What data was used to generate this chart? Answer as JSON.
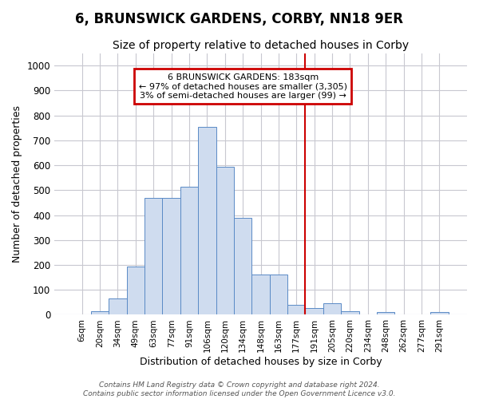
{
  "title": "6, BRUNSWICK GARDENS, CORBY, NN18 9ER",
  "subtitle": "Size of property relative to detached houses in Corby",
  "xlabel": "Distribution of detached houses by size in Corby",
  "ylabel": "Number of detached properties",
  "categories": [
    "6sqm",
    "20sqm",
    "34sqm",
    "49sqm",
    "63sqm",
    "77sqm",
    "91sqm",
    "106sqm",
    "120sqm",
    "134sqm",
    "148sqm",
    "163sqm",
    "177sqm",
    "191sqm",
    "205sqm",
    "220sqm",
    "234sqm",
    "248sqm",
    "262sqm",
    "277sqm",
    "291sqm"
  ],
  "values": [
    0,
    13,
    65,
    195,
    470,
    470,
    515,
    755,
    595,
    390,
    160,
    160,
    40,
    27,
    45,
    13,
    0,
    10,
    0,
    0,
    10
  ],
  "bar_color": "#cfdcef",
  "bar_edge_color": "#5a8ac6",
  "grid_color": "#c8c8d0",
  "background_color": "#ffffff",
  "ax_background_color": "#ffffff",
  "vline_color": "#cc0000",
  "vline_x_index": 13,
  "annotation_title": "6 BRUNSWICK GARDENS: 183sqm",
  "annotation_line1": "← 97% of detached houses are smaller (3,305)",
  "annotation_line2": "3% of semi-detached houses are larger (99) →",
  "annotation_box_color": "#cc0000",
  "ylim": [
    0,
    1050
  ],
  "yticks": [
    0,
    100,
    200,
    300,
    400,
    500,
    600,
    700,
    800,
    900,
    1000
  ],
  "title_fontsize": 12,
  "subtitle_fontsize": 10,
  "footer": "Contains HM Land Registry data © Crown copyright and database right 2024.\nContains public sector information licensed under the Open Government Licence v3.0."
}
